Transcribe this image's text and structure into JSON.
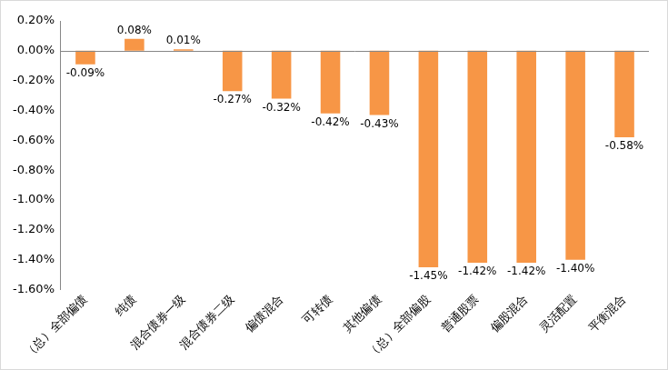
{
  "chart_data": {
    "type": "bar",
    "categories": [
      "（总）全部偏债",
      "纯债",
      "混合债券一级",
      "混合债券二级",
      "偏债混合",
      "可转债",
      "其他偏债",
      "（总）全部偏股",
      "普通股票",
      "偏股混合",
      "灵活配置",
      "平衡混合"
    ],
    "values": [
      -0.09,
      0.08,
      0.01,
      -0.27,
      -0.32,
      -0.42,
      -0.43,
      -1.45,
      -1.42,
      -1.42,
      -1.4,
      -0.58
    ],
    "value_labels": [
      "-0.09%",
      "0.08%",
      "0.01%",
      "-0.27%",
      "-0.32%",
      "-0.42%",
      "-0.43%",
      "-1.45%",
      "-1.42%",
      "-1.42%",
      "-1.40%",
      "-0.58%"
    ],
    "color": "#f79646",
    "ylim": [
      -1.6,
      0.2
    ],
    "yticks": [
      {
        "value": 0.2,
        "label": "0.20%"
      },
      {
        "value": 0,
        "label": "0.00%"
      },
      {
        "value": -0.2,
        "label": "-0.20%"
      },
      {
        "value": -0.4,
        "label": "-0.40%"
      },
      {
        "value": -0.6,
        "label": "-0.60%"
      },
      {
        "value": -0.8,
        "label": "-0.80%"
      },
      {
        "value": -1.0,
        "label": "-1.00%"
      },
      {
        "value": -1.2,
        "label": "-1.20%"
      },
      {
        "value": -1.4,
        "label": "-1.40%"
      },
      {
        "value": -1.6,
        "label": "-1.60%"
      }
    ],
    "grid": false,
    "data_labels": true
  }
}
